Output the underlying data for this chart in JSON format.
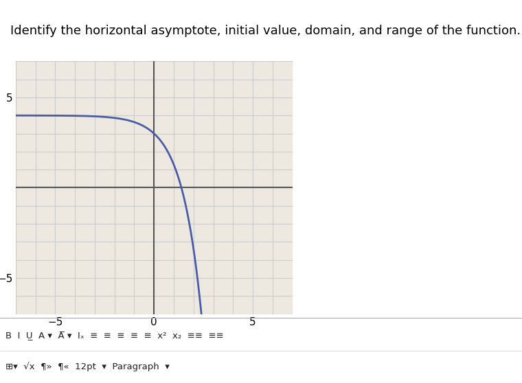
{
  "title": "Identify the horizontal asymptote, initial value, domain, and range of the function.",
  "title_fontsize": 13,
  "curve_color": "#4a5ca8",
  "curve_linewidth": 2.0,
  "grid_color": "#cccccc",
  "axis_color": "#555555",
  "bg_color": "#ede8e0",
  "xlim": [
    -7,
    7
  ],
  "ylim": [
    -7,
    7
  ],
  "xticks": [
    -5,
    0,
    5
  ],
  "yticks": [
    -5,
    5
  ],
  "toolbar_bg": "#e8e8e8",
  "toolbar_text_color": "#222222",
  "toolbar_line1": "B  I  U̲  A ▾  A̅ ▾  Iₓ  ≡  ≡  ≡  ≡  ≡  x²  x₂  ≡≡  ≡≡",
  "toolbar_line2": "⊞▾  √x  ¶»  ¶«  12pt  ▾  Paragraph  ▾"
}
